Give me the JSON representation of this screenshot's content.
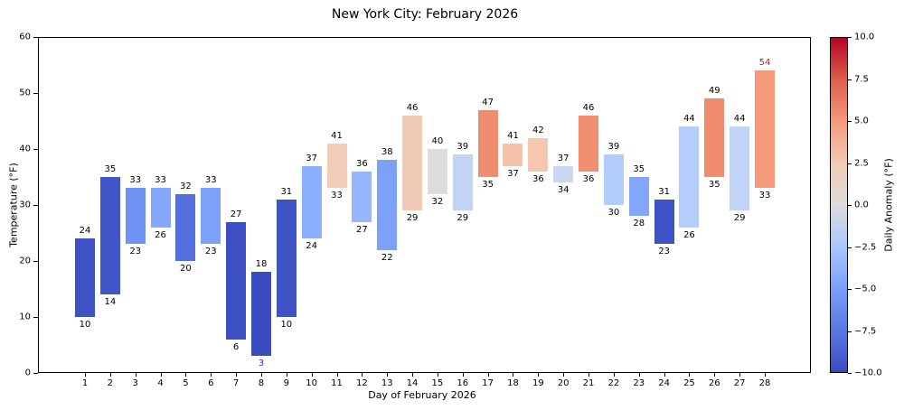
{
  "title": "New York City: February 2026",
  "chart_data": {
    "type": "bar",
    "subtype": "floating-range-bars",
    "title": "New York City: February 2026",
    "xlabel": "Day of February 2026",
    "ylabel": "Temperature (°F)",
    "ylim": [
      0,
      60
    ],
    "y_ticks": [
      0,
      10,
      20,
      30,
      40,
      50,
      60
    ],
    "x_ticks": [
      1,
      2,
      3,
      4,
      5,
      6,
      7,
      8,
      9,
      10,
      11,
      12,
      13,
      14,
      15,
      16,
      17,
      18,
      19,
      20,
      21,
      22,
      23,
      24,
      25,
      26,
      27,
      28
    ],
    "grid": false,
    "bars": [
      {
        "day": 1,
        "low": 10,
        "high": 24,
        "color": "#3e51c5"
      },
      {
        "day": 2,
        "low": 14,
        "high": 35,
        "color": "#4055c8"
      },
      {
        "day": 3,
        "low": 23,
        "high": 33,
        "color": "#6f92f3"
      },
      {
        "day": 4,
        "low": 26,
        "high": 33,
        "color": "#85a8fc"
      },
      {
        "day": 5,
        "low": 20,
        "high": 32,
        "color": "#5470de"
      },
      {
        "day": 6,
        "low": 23,
        "high": 33,
        "color": "#7da0f9"
      },
      {
        "day": 7,
        "low": 6,
        "high": 27,
        "color": "#3d50c3"
      },
      {
        "day": 8,
        "low": 3,
        "high": 18,
        "color": "#3b4cc0",
        "low_label_color": "#2f2fc9"
      },
      {
        "day": 9,
        "low": 10,
        "high": 31,
        "color": "#3e51c5"
      },
      {
        "day": 10,
        "low": 24,
        "high": 37,
        "color": "#8caffe"
      },
      {
        "day": 11,
        "low": 33,
        "high": 41,
        "color": "#f1ccb8"
      },
      {
        "day": 12,
        "low": 27,
        "high": 36,
        "color": "#96b7ff"
      },
      {
        "day": 13,
        "low": 22,
        "high": 38,
        "color": "#7da0f9"
      },
      {
        "day": 14,
        "low": 29,
        "high": 46,
        "color": "#f2cbb7"
      },
      {
        "day": 15,
        "low": 32,
        "high": 40,
        "color": "#dedcdb"
      },
      {
        "day": 16,
        "low": 29,
        "high": 39,
        "color": "#c1d4f4"
      },
      {
        "day": 17,
        "low": 35,
        "high": 47,
        "color": "#f18d6f"
      },
      {
        "day": 18,
        "low": 37,
        "high": 41,
        "color": "#f5c2aa"
      },
      {
        "day": 19,
        "low": 36,
        "high": 42,
        "color": "#f5c7b1"
      },
      {
        "day": 20,
        "low": 34,
        "high": 37,
        "color": "#c9d7f0"
      },
      {
        "day": 21,
        "low": 36,
        "high": 46,
        "color": "#f18f70"
      },
      {
        "day": 22,
        "low": 30,
        "high": 39,
        "color": "#b2ccfb"
      },
      {
        "day": 23,
        "low": 28,
        "high": 35,
        "color": "#82a6fb"
      },
      {
        "day": 24,
        "low": 23,
        "high": 31,
        "color": "#3f53c6"
      },
      {
        "day": 25,
        "low": 26,
        "high": 44,
        "color": "#b5cdfa"
      },
      {
        "day": 26,
        "low": 35,
        "high": 49,
        "color": "#f18d6f"
      },
      {
        "day": 27,
        "low": 29,
        "high": 44,
        "color": "#c0d4f5"
      },
      {
        "day": 28,
        "low": 33,
        "high": 54,
        "color": "#f49a7b",
        "high_label_color": "#b22222"
      }
    ],
    "record_annotations": {
      "record_low": {
        "day": 8,
        "value": 3,
        "color": "#2f2fc9"
      },
      "record_high": {
        "day": 28,
        "value": 54,
        "color": "#b22222"
      }
    },
    "colorbar": {
      "label": "Daily Anomaly (°F)",
      "range": [
        -10,
        10
      ],
      "ticks": [
        {
          "v": 10,
          "label": "10.0"
        },
        {
          "v": 7.5,
          "label": "7.5"
        },
        {
          "v": 5,
          "label": "5.0"
        },
        {
          "v": 2.5,
          "label": "2.5"
        },
        {
          "v": 0,
          "label": "0.0"
        },
        {
          "v": -2.5,
          "label": "−2.5"
        },
        {
          "v": -5,
          "label": "−5.0"
        },
        {
          "v": -7.5,
          "label": "−7.5"
        },
        {
          "v": -10,
          "label": "−10.0"
        }
      ],
      "gradient_bottom_to_top": [
        {
          "pos": 0,
          "color": "#3b4cc0"
        },
        {
          "pos": 12.5,
          "color": "#5977e3"
        },
        {
          "pos": 25,
          "color": "#7b9ff9"
        },
        {
          "pos": 37.5,
          "color": "#aac7fd"
        },
        {
          "pos": 50,
          "color": "#dddcdc"
        },
        {
          "pos": 62.5,
          "color": "#f2cab5"
        },
        {
          "pos": 75,
          "color": "#f49a7b"
        },
        {
          "pos": 87.5,
          "color": "#dd5f4b"
        },
        {
          "pos": 100,
          "color": "#b40426"
        }
      ]
    }
  }
}
